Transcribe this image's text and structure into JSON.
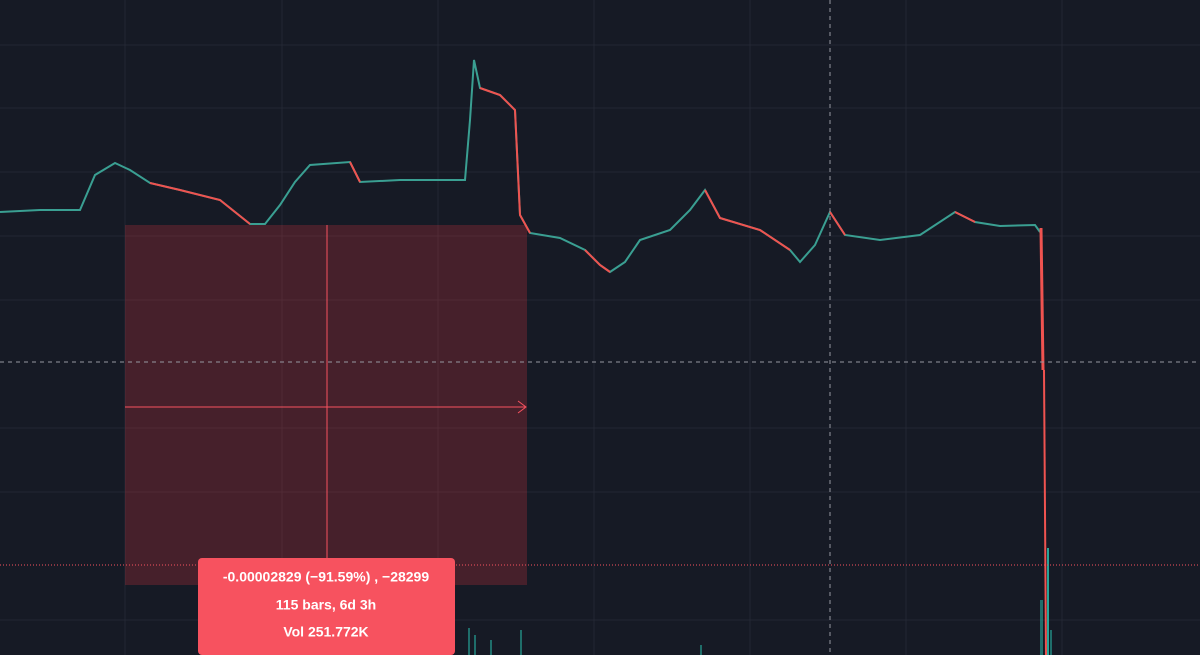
{
  "measure_tooltip": {
    "lines": [
      "-0.00002829 (−91.59%) , −28299",
      "115 bars, 6d 3h",
      "Vol 251.772K"
    ]
  }
}
